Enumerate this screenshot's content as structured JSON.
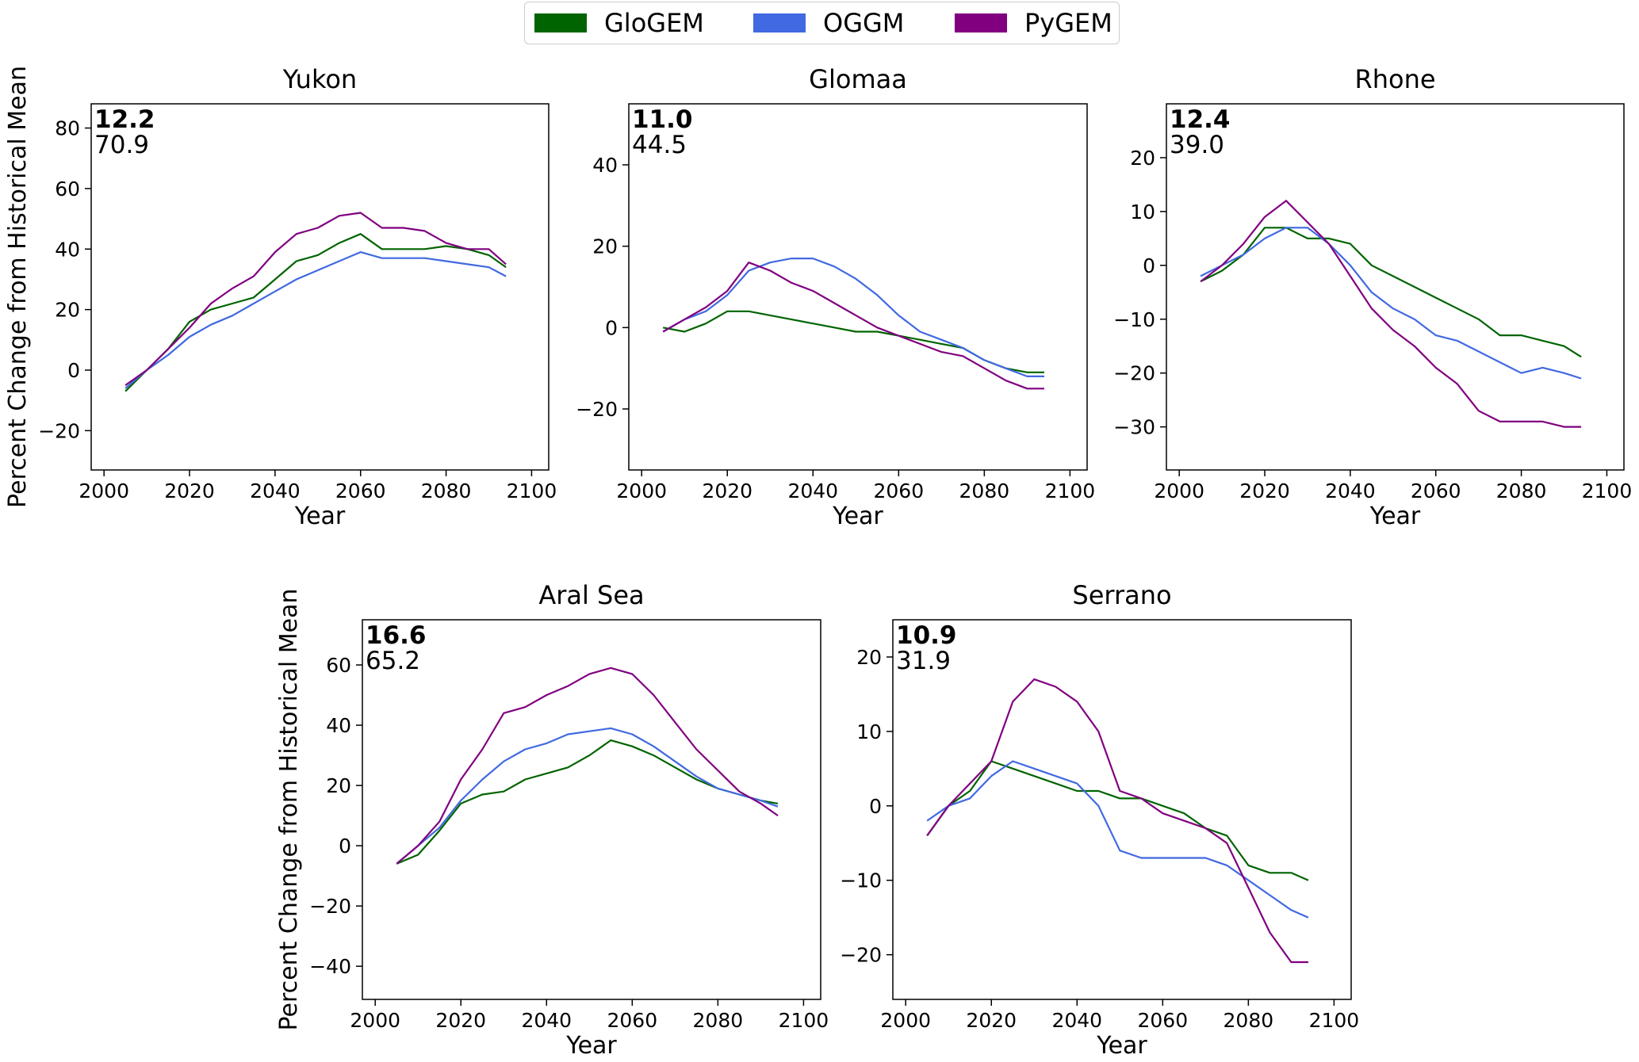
{
  "legend": [
    {
      "label": "GloGEM",
      "color": "#006400"
    },
    {
      "label": "OGGM",
      "color": "#4169e1"
    },
    {
      "label": "PyGEM",
      "color": "#800080"
    }
  ],
  "chart_data": [
    {
      "type": "line",
      "title": "Yukon",
      "xlabel": "Year",
      "ylabel": "Percent Change from Historical Mean",
      "xlim": [
        1997,
        2104
      ],
      "ylim": [
        -33,
        88
      ],
      "xticks": [
        2000,
        2020,
        2040,
        2060,
        2080,
        2100
      ],
      "yticks": [
        -20,
        0,
        20,
        40,
        60,
        80
      ],
      "annotation_bold": "12.2",
      "annotation": "70.9",
      "series": [
        {
          "name": "GloGEM",
          "color": "#006400",
          "x": [
            2005,
            2010,
            2015,
            2020,
            2025,
            2030,
            2035,
            2040,
            2045,
            2050,
            2055,
            2060,
            2065,
            2070,
            2075,
            2080,
            2085,
            2090,
            2094
          ],
          "y": [
            -7,
            0,
            7,
            16,
            20,
            22,
            24,
            30,
            36,
            38,
            42,
            45,
            40,
            40,
            40,
            41,
            40,
            38,
            34
          ]
        },
        {
          "name": "OGGM",
          "color": "#4169e1",
          "x": [
            2005,
            2010,
            2015,
            2020,
            2025,
            2030,
            2035,
            2040,
            2045,
            2050,
            2055,
            2060,
            2065,
            2070,
            2075,
            2080,
            2085,
            2090,
            2094
          ],
          "y": [
            -6,
            0,
            5,
            11,
            15,
            18,
            22,
            26,
            30,
            33,
            36,
            39,
            37,
            37,
            37,
            36,
            35,
            34,
            31
          ]
        },
        {
          "name": "PyGEM",
          "color": "#800080",
          "x": [
            2005,
            2010,
            2015,
            2020,
            2025,
            2030,
            2035,
            2040,
            2045,
            2050,
            2055,
            2060,
            2065,
            2070,
            2075,
            2080,
            2085,
            2090,
            2094
          ],
          "y": [
            -5,
            0,
            7,
            14,
            22,
            27,
            31,
            39,
            45,
            47,
            51,
            52,
            47,
            47,
            46,
            42,
            40,
            40,
            35
          ]
        }
      ]
    },
    {
      "type": "line",
      "title": "Glomaa",
      "xlabel": "Year",
      "ylabel": "",
      "xlim": [
        1997,
        2104
      ],
      "ylim": [
        -35,
        55
      ],
      "xticks": [
        2000,
        2020,
        2040,
        2060,
        2080,
        2100
      ],
      "yticks": [
        -20,
        0,
        20,
        40
      ],
      "annotation_bold": "11.0",
      "annotation": "44.5",
      "series": [
        {
          "name": "GloGEM",
          "color": "#006400",
          "x": [
            2005,
            2010,
            2015,
            2020,
            2025,
            2030,
            2035,
            2040,
            2045,
            2050,
            2055,
            2060,
            2065,
            2070,
            2075,
            2080,
            2085,
            2090,
            2094
          ],
          "y": [
            0,
            -1,
            1,
            4,
            4,
            3,
            2,
            1,
            0,
            -1,
            -1,
            -2,
            -3,
            -4,
            -5,
            -8,
            -10,
            -11,
            -11
          ]
        },
        {
          "name": "OGGM",
          "color": "#4169e1",
          "x": [
            2005,
            2010,
            2015,
            2020,
            2025,
            2030,
            2035,
            2040,
            2045,
            2050,
            2055,
            2060,
            2065,
            2070,
            2075,
            2080,
            2085,
            2090,
            2094
          ],
          "y": [
            -1,
            2,
            4,
            8,
            14,
            16,
            17,
            17,
            15,
            12,
            8,
            3,
            -1,
            -3,
            -5,
            -8,
            -10,
            -12,
            -12
          ]
        },
        {
          "name": "PyGEM",
          "color": "#800080",
          "x": [
            2005,
            2010,
            2015,
            2020,
            2025,
            2030,
            2035,
            2040,
            2045,
            2050,
            2055,
            2060,
            2065,
            2070,
            2075,
            2080,
            2085,
            2090,
            2094
          ],
          "y": [
            -1,
            2,
            5,
            9,
            16,
            14,
            11,
            9,
            6,
            3,
            0,
            -2,
            -4,
            -6,
            -7,
            -10,
            -13,
            -15,
            -15
          ]
        }
      ]
    },
    {
      "type": "line",
      "title": "Rhone",
      "xlabel": "Year",
      "ylabel": "",
      "xlim": [
        1997,
        2104
      ],
      "ylim": [
        -38,
        30
      ],
      "xticks": [
        2000,
        2020,
        2040,
        2060,
        2080,
        2100
      ],
      "yticks": [
        -30,
        -20,
        -10,
        0,
        10,
        20
      ],
      "annotation_bold": "12.4",
      "annotation": "39.0",
      "series": [
        {
          "name": "GloGEM",
          "color": "#006400",
          "x": [
            2005,
            2010,
            2015,
            2020,
            2025,
            2030,
            2035,
            2040,
            2045,
            2050,
            2055,
            2060,
            2065,
            2070,
            2075,
            2080,
            2085,
            2090,
            2094
          ],
          "y": [
            -3,
            -1,
            2,
            7,
            7,
            5,
            5,
            4,
            0,
            -2,
            -4,
            -6,
            -8,
            -10,
            -13,
            -13,
            -14,
            -15,
            -17
          ]
        },
        {
          "name": "OGGM",
          "color": "#4169e1",
          "x": [
            2005,
            2010,
            2015,
            2020,
            2025,
            2030,
            2035,
            2040,
            2045,
            2050,
            2055,
            2060,
            2065,
            2070,
            2075,
            2080,
            2085,
            2090,
            2094
          ],
          "y": [
            -2,
            0,
            2,
            5,
            7,
            7,
            4,
            0,
            -5,
            -8,
            -10,
            -13,
            -14,
            -16,
            -18,
            -20,
            -19,
            -20,
            -21
          ]
        },
        {
          "name": "PyGEM",
          "color": "#800080",
          "x": [
            2005,
            2010,
            2015,
            2020,
            2025,
            2030,
            2035,
            2040,
            2045,
            2050,
            2055,
            2060,
            2065,
            2070,
            2075,
            2080,
            2085,
            2090,
            2094
          ],
          "y": [
            -3,
            0,
            4,
            9,
            12,
            8,
            4,
            -2,
            -8,
            -12,
            -15,
            -19,
            -22,
            -27,
            -29,
            -29,
            -29,
            -30,
            -30
          ]
        }
      ]
    },
    {
      "type": "line",
      "title": "Aral Sea",
      "xlabel": "Year",
      "ylabel": "Percent Change from Historical Mean",
      "xlim": [
        1997,
        2104
      ],
      "ylim": [
        -51,
        75
      ],
      "xticks": [
        2000,
        2020,
        2040,
        2060,
        2080,
        2100
      ],
      "yticks": [
        -40,
        -20,
        0,
        20,
        40,
        60
      ],
      "annotation_bold": "16.6",
      "annotation": "65.2",
      "series": [
        {
          "name": "GloGEM",
          "color": "#006400",
          "x": [
            2005,
            2010,
            2015,
            2020,
            2025,
            2030,
            2035,
            2040,
            2045,
            2050,
            2055,
            2060,
            2065,
            2070,
            2075,
            2080,
            2085,
            2090,
            2094
          ],
          "y": [
            -6,
            -3,
            5,
            14,
            17,
            18,
            22,
            24,
            26,
            30,
            35,
            33,
            30,
            26,
            22,
            19,
            17,
            15,
            14
          ]
        },
        {
          "name": "OGGM",
          "color": "#4169e1",
          "x": [
            2005,
            2010,
            2015,
            2020,
            2025,
            2030,
            2035,
            2040,
            2045,
            2050,
            2055,
            2060,
            2065,
            2070,
            2075,
            2080,
            2085,
            2090,
            2094
          ],
          "y": [
            -6,
            0,
            6,
            15,
            22,
            28,
            32,
            34,
            37,
            38,
            39,
            37,
            33,
            28,
            23,
            19,
            17,
            15,
            13
          ]
        },
        {
          "name": "PyGEM",
          "color": "#800080",
          "x": [
            2005,
            2010,
            2015,
            2020,
            2025,
            2030,
            2035,
            2040,
            2045,
            2050,
            2055,
            2060,
            2065,
            2070,
            2075,
            2080,
            2085,
            2090,
            2094
          ],
          "y": [
            -6,
            0,
            8,
            22,
            32,
            44,
            46,
            50,
            53,
            57,
            59,
            57,
            50,
            41,
            32,
            25,
            18,
            14,
            10
          ]
        }
      ]
    },
    {
      "type": "line",
      "title": "Serrano",
      "xlabel": "Year",
      "ylabel": "",
      "xlim": [
        1997,
        2104
      ],
      "ylim": [
        -26,
        25
      ],
      "xticks": [
        2000,
        2020,
        2040,
        2060,
        2080,
        2100
      ],
      "yticks": [
        -20,
        -10,
        0,
        10,
        20
      ],
      "annotation_bold": "10.9",
      "annotation": "31.9",
      "series": [
        {
          "name": "GloGEM",
          "color": "#006400",
          "x": [
            2005,
            2010,
            2015,
            2020,
            2025,
            2030,
            2035,
            2040,
            2045,
            2050,
            2055,
            2060,
            2065,
            2070,
            2075,
            2080,
            2085,
            2090,
            2094
          ],
          "y": [
            -4,
            0,
            2,
            6,
            5,
            4,
            3,
            2,
            2,
            1,
            1,
            0,
            -1,
            -3,
            -4,
            -8,
            -9,
            -9,
            -10
          ]
        },
        {
          "name": "OGGM",
          "color": "#4169e1",
          "x": [
            2005,
            2010,
            2015,
            2020,
            2025,
            2030,
            2035,
            2040,
            2045,
            2050,
            2055,
            2060,
            2065,
            2070,
            2075,
            2080,
            2085,
            2090,
            2094
          ],
          "y": [
            -2,
            0,
            1,
            4,
            6,
            5,
            4,
            3,
            0,
            -6,
            -7,
            -7,
            -7,
            -7,
            -8,
            -10,
            -12,
            -14,
            -15
          ]
        },
        {
          "name": "PyGEM",
          "color": "#800080",
          "x": [
            2005,
            2010,
            2015,
            2020,
            2025,
            2030,
            2035,
            2040,
            2045,
            2050,
            2055,
            2060,
            2065,
            2070,
            2075,
            2080,
            2085,
            2090,
            2094
          ],
          "y": [
            -4,
            0,
            3,
            6,
            14,
            17,
            16,
            14,
            10,
            2,
            1,
            -1,
            -2,
            -3,
            -5,
            -11,
            -17,
            -21,
            -21
          ]
        }
      ]
    }
  ]
}
